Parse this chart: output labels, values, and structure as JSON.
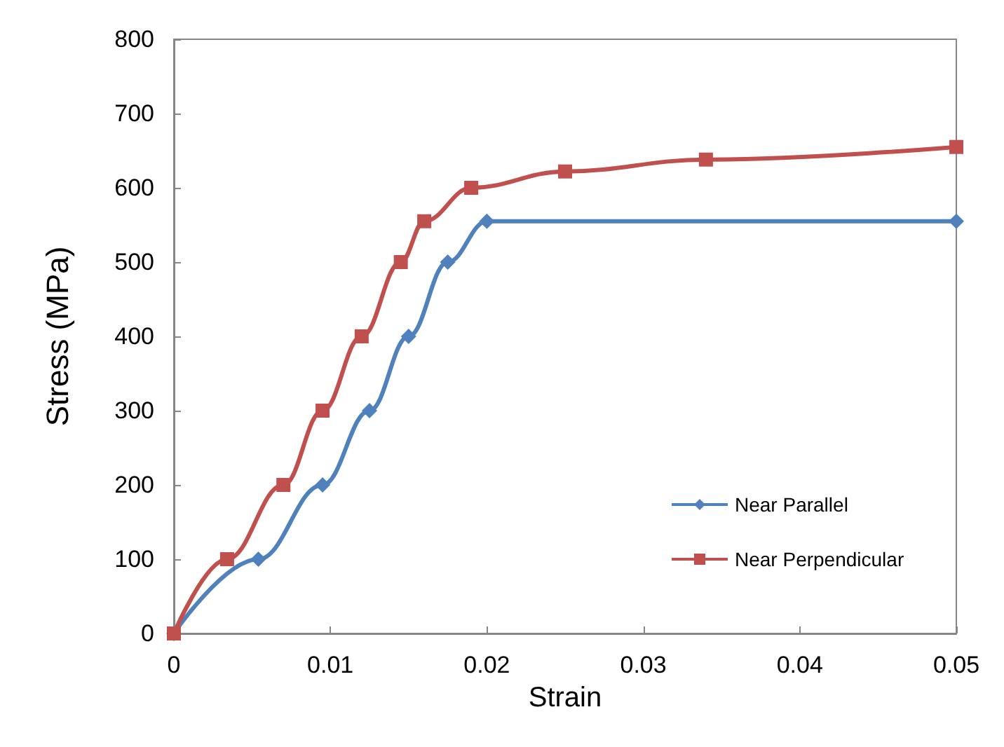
{
  "chart_data": {
    "type": "line",
    "xlabel": "Strain",
    "ylabel": "Stress (MPa)",
    "xlim": [
      0,
      0.05
    ],
    "xticks": [
      0,
      0.01,
      0.02,
      0.03,
      0.04,
      0.05
    ],
    "ylim": [
      0,
      800
    ],
    "yticks": [
      0,
      100,
      200,
      300,
      400,
      500,
      600,
      700,
      800
    ],
    "grid": false,
    "legend": "bottom right",
    "line_style": "solid",
    "series": [
      {
        "name": "Near Parallel",
        "color": "#4f81bd",
        "marker": "diamond",
        "x": [
          0,
          0.0054,
          0.0095,
          0.0125,
          0.015,
          0.0175,
          0.02,
          0.05
        ],
        "values": [
          0,
          100,
          200,
          300,
          400,
          500,
          555,
          555
        ]
      },
      {
        "name": "Near Perpendicular",
        "color": "#c0504d",
        "marker": "square",
        "x": [
          0,
          0.0034,
          0.007,
          0.0095,
          0.012,
          0.0145,
          0.016,
          0.019,
          0.025,
          0.034,
          0.05
        ],
        "values": [
          0,
          100,
          200,
          300,
          400,
          500,
          555,
          600,
          622,
          638,
          655
        ]
      }
    ]
  }
}
